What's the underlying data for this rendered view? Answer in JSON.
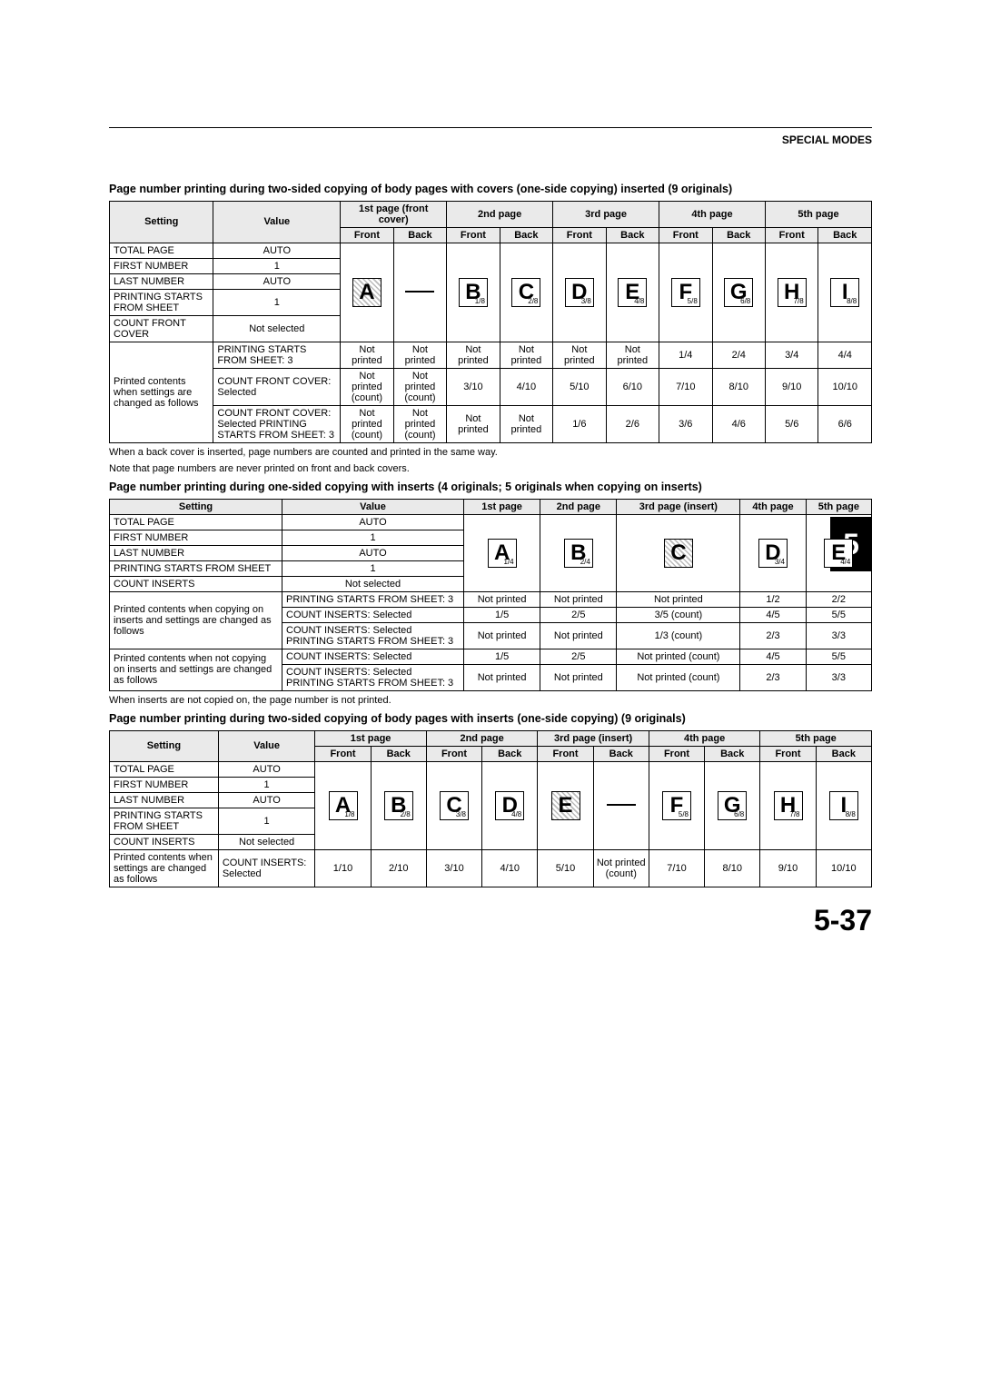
{
  "header": {
    "section": "SPECIAL MODES"
  },
  "chapter_tab": "5",
  "page_number": "5-37",
  "section1": {
    "title": "Page number printing during two-sided copying of body pages with covers (one-side copying) inserted (9 originals)",
    "headers": {
      "setting": "Setting",
      "value": "Value",
      "p1": "1st page (front cover)",
      "p2": "2nd page",
      "p3": "3rd page",
      "p4": "4th page",
      "p5": "5th page",
      "front": "Front",
      "back": "Back"
    },
    "settings": [
      {
        "label": "TOTAL PAGE",
        "value": "AUTO"
      },
      {
        "label": "FIRST NUMBER",
        "value": "1"
      },
      {
        "label": "LAST NUMBER",
        "value": "AUTO"
      },
      {
        "label": "PRINTING STARTS FROM SHEET",
        "value": "1"
      },
      {
        "label": "COUNT FRONT COVER",
        "value": "Not selected"
      }
    ],
    "letters": [
      {
        "ch": "A",
        "sub": "",
        "hatched": true
      },
      {
        "ch": "",
        "sub": "",
        "hatched": false,
        "blank": true
      },
      {
        "ch": "B",
        "sub": "1/8",
        "hatched": false
      },
      {
        "ch": "C",
        "sub": "2/8",
        "hatched": false
      },
      {
        "ch": "D",
        "sub": "3/8",
        "hatched": false
      },
      {
        "ch": "E",
        "sub": "4/8",
        "hatched": false
      },
      {
        "ch": "F",
        "sub": "5/8",
        "hatched": false
      },
      {
        "ch": "G",
        "sub": "6/8",
        "hatched": false
      },
      {
        "ch": "H",
        "sub": "7/8",
        "hatched": false
      },
      {
        "ch": "I",
        "sub": "8/8",
        "hatched": false
      }
    ],
    "extra_group_label": "Printed contents when settings are changed as follows",
    "extra": [
      {
        "setting": "PRINTING STARTS FROM SHEET: 3",
        "cells": [
          "Not printed",
          "Not printed",
          "Not printed",
          "Not printed",
          "Not printed",
          "Not printed",
          "1/4",
          "2/4",
          "3/4",
          "4/4"
        ]
      },
      {
        "setting": "COUNT FRONT COVER: Selected",
        "cells": [
          "Not printed (count)",
          "Not printed (count)",
          "3/10",
          "4/10",
          "5/10",
          "6/10",
          "7/10",
          "8/10",
          "9/10",
          "10/10"
        ]
      },
      {
        "setting": "COUNT FRONT COVER: Selected PRINTING STARTS FROM SHEET: 3",
        "cells": [
          "Not printed (count)",
          "Not printed (count)",
          "Not printed",
          "Not printed",
          "1/6",
          "2/6",
          "3/6",
          "4/6",
          "5/6",
          "6/6"
        ]
      }
    ],
    "notes": [
      "When a back cover is inserted, page numbers are counted and printed in the same way.",
      "Note that page numbers are never printed on front and back covers."
    ]
  },
  "section2": {
    "title": "Page number printing during one-sided copying with inserts (4 originals; 5 originals when copying on inserts)",
    "headers": {
      "setting": "Setting",
      "value": "Value",
      "p1": "1st page",
      "p2": "2nd page",
      "p3": "3rd page (insert)",
      "p4": "4th page",
      "p5": "5th page"
    },
    "settings": [
      {
        "label": "TOTAL PAGE",
        "value": "AUTO"
      },
      {
        "label": "FIRST NUMBER",
        "value": "1"
      },
      {
        "label": "LAST NUMBER",
        "value": "AUTO"
      },
      {
        "label": "PRINTING STARTS FROM SHEET",
        "value": "1"
      },
      {
        "label": "COUNT INSERTS",
        "value": "Not selected"
      }
    ],
    "letters": [
      {
        "ch": "A",
        "sub": "1/4",
        "hatched": false
      },
      {
        "ch": "B",
        "sub": "2/4",
        "hatched": false
      },
      {
        "ch": "C",
        "sub": "",
        "hatched": true
      },
      {
        "ch": "D",
        "sub": "3/4",
        "hatched": false
      },
      {
        "ch": "E",
        "sub": "4/4",
        "hatched": false
      }
    ],
    "group_a_label": "Printed contents when copying on inserts and settings are changed as follows",
    "group_b_label": "Printed contents when not copying on inserts and settings are changed as follows",
    "group_a": [
      {
        "setting": "PRINTING STARTS FROM SHEET: 3",
        "cells": [
          "Not printed",
          "Not printed",
          "Not printed",
          "1/2",
          "2/2"
        ]
      },
      {
        "setting": "COUNT INSERTS: Selected",
        "cells": [
          "1/5",
          "2/5",
          "3/5 (count)",
          "4/5",
          "5/5"
        ]
      },
      {
        "setting": "COUNT INSERTS: Selected PRINTING STARTS FROM SHEET: 3",
        "cells": [
          "Not printed",
          "Not printed",
          "1/3 (count)",
          "2/3",
          "3/3"
        ]
      }
    ],
    "group_b": [
      {
        "setting": "COUNT INSERTS: Selected",
        "cells": [
          "1/5",
          "2/5",
          "Not printed (count)",
          "4/5",
          "5/5"
        ]
      },
      {
        "setting": "COUNT INSERTS: Selected PRINTING STARTS FROM SHEET: 3",
        "cells": [
          "Not printed",
          "Not printed",
          "Not printed (count)",
          "2/3",
          "3/3"
        ]
      }
    ],
    "note": "When inserts are not copied on, the page number is not printed."
  },
  "section3": {
    "title": "Page number printing during two-sided copying of body pages with inserts (one-side copying) (9 originals)",
    "headers": {
      "setting": "Setting",
      "value": "Value",
      "p1": "1st page",
      "p2": "2nd page",
      "p3": "3rd page (insert)",
      "p4": "4th page",
      "p5": "5th page",
      "front": "Front",
      "back": "Back"
    },
    "settings": [
      {
        "label": "TOTAL PAGE",
        "value": "AUTO"
      },
      {
        "label": "FIRST NUMBER",
        "value": "1"
      },
      {
        "label": "LAST NUMBER",
        "value": "AUTO"
      },
      {
        "label": "PRINTING STARTS FROM SHEET",
        "value": "1"
      },
      {
        "label": "COUNT INSERTS",
        "value": "Not selected"
      }
    ],
    "letters": [
      {
        "ch": "A",
        "sub": "1/8",
        "hatched": false
      },
      {
        "ch": "B",
        "sub": "2/8",
        "hatched": false
      },
      {
        "ch": "C",
        "sub": "3/8",
        "hatched": false
      },
      {
        "ch": "D",
        "sub": "4/8",
        "hatched": false
      },
      {
        "ch": "E",
        "sub": "",
        "hatched": true
      },
      {
        "ch": "",
        "sub": "",
        "hatched": false,
        "blank": true
      },
      {
        "ch": "F",
        "sub": "5/8",
        "hatched": false
      },
      {
        "ch": "G",
        "sub": "6/8",
        "hatched": false
      },
      {
        "ch": "H",
        "sub": "7/8",
        "hatched": false
      },
      {
        "ch": "I",
        "sub": "8/8",
        "hatched": false
      }
    ],
    "extra_group_label": "Printed contents when settings are changed as follows",
    "extra": [
      {
        "setting": "COUNT INSERTS: Selected",
        "cells": [
          "1/10",
          "2/10",
          "3/10",
          "4/10",
          "5/10",
          "Not printed (count)",
          "7/10",
          "8/10",
          "9/10",
          "10/10"
        ]
      }
    ]
  }
}
